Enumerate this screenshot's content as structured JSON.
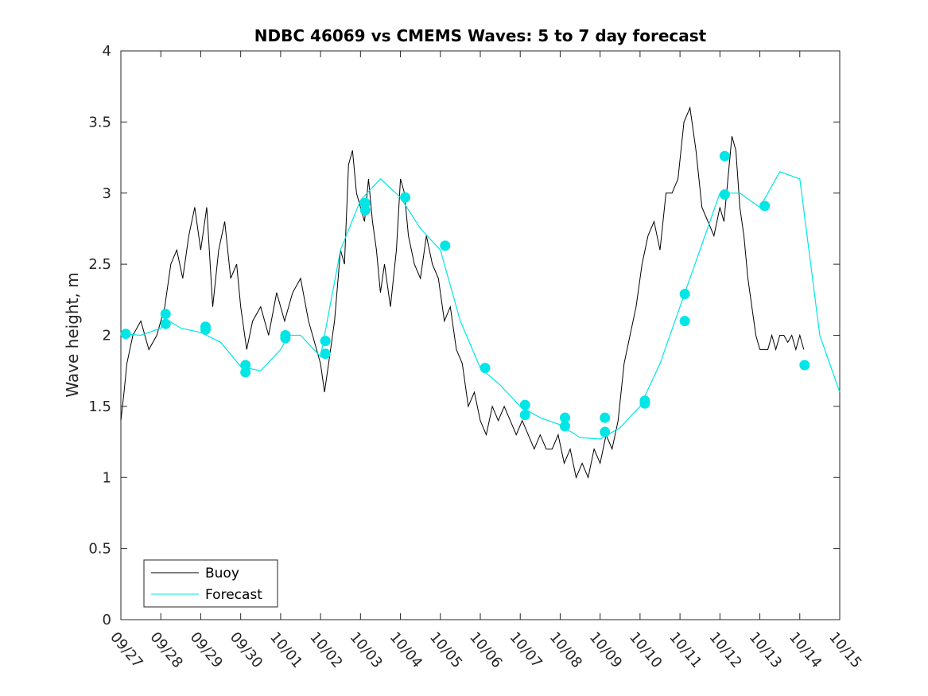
{
  "chart_data": {
    "type": "line",
    "title": "NDBC 46069 vs CMEMS Waves: 5 to 7 day forecast",
    "xlabel": "",
    "ylabel": "Wave height, m",
    "xlim": [
      0,
      18
    ],
    "ylim": [
      0,
      4
    ],
    "yticks": [
      "0",
      "0.5",
      "1",
      "1.5",
      "2",
      "2.5",
      "3",
      "3.5",
      "4"
    ],
    "ytick_values": [
      0,
      0.5,
      1,
      1.5,
      2,
      2.5,
      3,
      3.5,
      4
    ],
    "xticks": [
      "09/27",
      "09/28",
      "09/29",
      "09/30",
      "10/01",
      "10/02",
      "10/03",
      "10/04",
      "10/05",
      "10/06",
      "10/07",
      "10/08",
      "10/09",
      "10/10",
      "10/11",
      "10/12",
      "10/13",
      "10/14",
      "10/15"
    ],
    "legend": {
      "placement": "bottom-left",
      "entries": [
        "Buoy",
        "Forecast"
      ]
    },
    "colors": {
      "buoy": "#000000",
      "forecast": "#00e5e5",
      "markers": "#00e5e5"
    },
    "series": [
      {
        "name": "Buoy",
        "x": [
          0,
          0.08,
          0.15,
          0.3,
          0.5,
          0.7,
          0.9,
          1.0,
          1.1,
          1.25,
          1.4,
          1.55,
          1.7,
          1.85,
          2.0,
          2.15,
          2.3,
          2.45,
          2.6,
          2.75,
          2.9,
          3.0,
          3.15,
          3.3,
          3.5,
          3.7,
          3.9,
          4.1,
          4.3,
          4.5,
          4.7,
          4.9,
          5.0,
          5.1,
          5.2,
          5.35,
          5.5,
          5.6,
          5.7,
          5.8,
          5.9,
          6.0,
          6.1,
          6.2,
          6.3,
          6.4,
          6.5,
          6.6,
          6.75,
          6.9,
          7.0,
          7.1,
          7.2,
          7.35,
          7.5,
          7.65,
          7.8,
          7.95,
          8.1,
          8.25,
          8.4,
          8.55,
          8.7,
          8.85,
          9.0,
          9.15,
          9.3,
          9.45,
          9.6,
          9.75,
          9.9,
          10.05,
          10.2,
          10.35,
          10.5,
          10.65,
          10.8,
          10.95,
          11.1,
          11.25,
          11.4,
          11.55,
          11.7,
          11.85,
          12.0,
          12.15,
          12.3,
          12.45,
          12.6,
          12.75,
          12.9,
          13.05,
          13.2,
          13.35,
          13.5,
          13.65,
          13.8,
          13.95,
          14.1,
          14.25,
          14.4,
          14.55,
          14.7,
          14.85,
          15.0,
          15.1,
          15.2,
          15.3,
          15.4,
          15.5,
          15.6,
          15.7,
          15.8,
          15.9,
          16.0,
          16.1,
          16.2,
          16.3,
          16.4,
          16.5,
          16.6,
          16.7,
          16.8,
          16.9,
          17.0,
          17.1
        ],
        "values": [
          1.4,
          1.6,
          1.8,
          2.0,
          2.1,
          1.9,
          2.0,
          2.1,
          2.2,
          2.5,
          2.6,
          2.4,
          2.7,
          2.9,
          2.6,
          2.9,
          2.2,
          2.6,
          2.8,
          2.4,
          2.5,
          2.2,
          1.9,
          2.1,
          2.2,
          2.0,
          2.3,
          2.1,
          2.3,
          2.4,
          2.1,
          1.9,
          1.8,
          1.6,
          1.8,
          2.1,
          2.6,
          2.5,
          3.2,
          3.3,
          3.0,
          2.9,
          2.8,
          3.1,
          2.8,
          2.6,
          2.3,
          2.5,
          2.2,
          2.6,
          3.1,
          3.0,
          2.7,
          2.5,
          2.4,
          2.7,
          2.5,
          2.4,
          2.1,
          2.2,
          1.9,
          1.8,
          1.5,
          1.6,
          1.4,
          1.3,
          1.5,
          1.4,
          1.5,
          1.4,
          1.3,
          1.4,
          1.3,
          1.2,
          1.3,
          1.2,
          1.2,
          1.3,
          1.1,
          1.2,
          1.0,
          1.1,
          1.0,
          1.2,
          1.1,
          1.3,
          1.2,
          1.4,
          1.8,
          2.0,
          2.2,
          2.5,
          2.7,
          2.8,
          2.6,
          3.0,
          3.0,
          3.1,
          3.5,
          3.6,
          3.3,
          2.9,
          2.8,
          2.7,
          2.9,
          2.8,
          3.1,
          3.4,
          3.3,
          2.9,
          2.7,
          2.4,
          2.2,
          2.0,
          1.9,
          1.9,
          1.9,
          2.0,
          1.9,
          2.0,
          2.0,
          1.95,
          2.0,
          1.9,
          2.0,
          1.9
        ]
      },
      {
        "name": "Forecast",
        "x": [
          0.1,
          0.5,
          1.0,
          1.1,
          1.5,
          2.0,
          2.5,
          3.0,
          3.5,
          4.0,
          4.2,
          4.5,
          5.0,
          5.5,
          6.0,
          6.5,
          7.0,
          7.5,
          8.0,
          8.5,
          9.0,
          9.5,
          10.0,
          10.5,
          11.0,
          11.5,
          12.0,
          12.5,
          13.0,
          13.5,
          14.0,
          14.5,
          15.0,
          15.5,
          16.0,
          16.5,
          17.0,
          17.5,
          18.0
        ],
        "values": [
          2.01,
          2.0,
          2.05,
          2.12,
          2.05,
          2.02,
          1.95,
          1.78,
          1.75,
          1.9,
          2.0,
          2.0,
          1.85,
          2.6,
          2.95,
          3.1,
          2.97,
          2.75,
          2.6,
          2.1,
          1.77,
          1.65,
          1.5,
          1.42,
          1.37,
          1.28,
          1.27,
          1.35,
          1.5,
          1.8,
          2.2,
          2.6,
          3.0,
          3.0,
          2.9,
          3.15,
          3.1,
          2.0,
          1.6
        ]
      }
    ],
    "forecast_markers": {
      "x": [
        0.12,
        1.12,
        1.12,
        2.12,
        2.12,
        3.12,
        3.12,
        4.12,
        4.12,
        5.12,
        5.12,
        6.12,
        6.12,
        7.12,
        8.12,
        9.12,
        10.12,
        10.12,
        11.12,
        11.12,
        12.12,
        12.12,
        13.12,
        13.12,
        14.12,
        14.12,
        15.12,
        15.12,
        16.12,
        17.12
      ],
      "values": [
        2.01,
        2.15,
        2.08,
        2.06,
        2.04,
        1.79,
        1.74,
        2.0,
        1.98,
        1.96,
        1.87,
        2.93,
        2.88,
        2.97,
        2.63,
        1.77,
        1.51,
        1.44,
        1.42,
        1.36,
        1.42,
        1.32,
        1.54,
        1.52,
        2.29,
        2.1,
        3.26,
        2.99,
        2.91,
        1.79
      ]
    }
  }
}
